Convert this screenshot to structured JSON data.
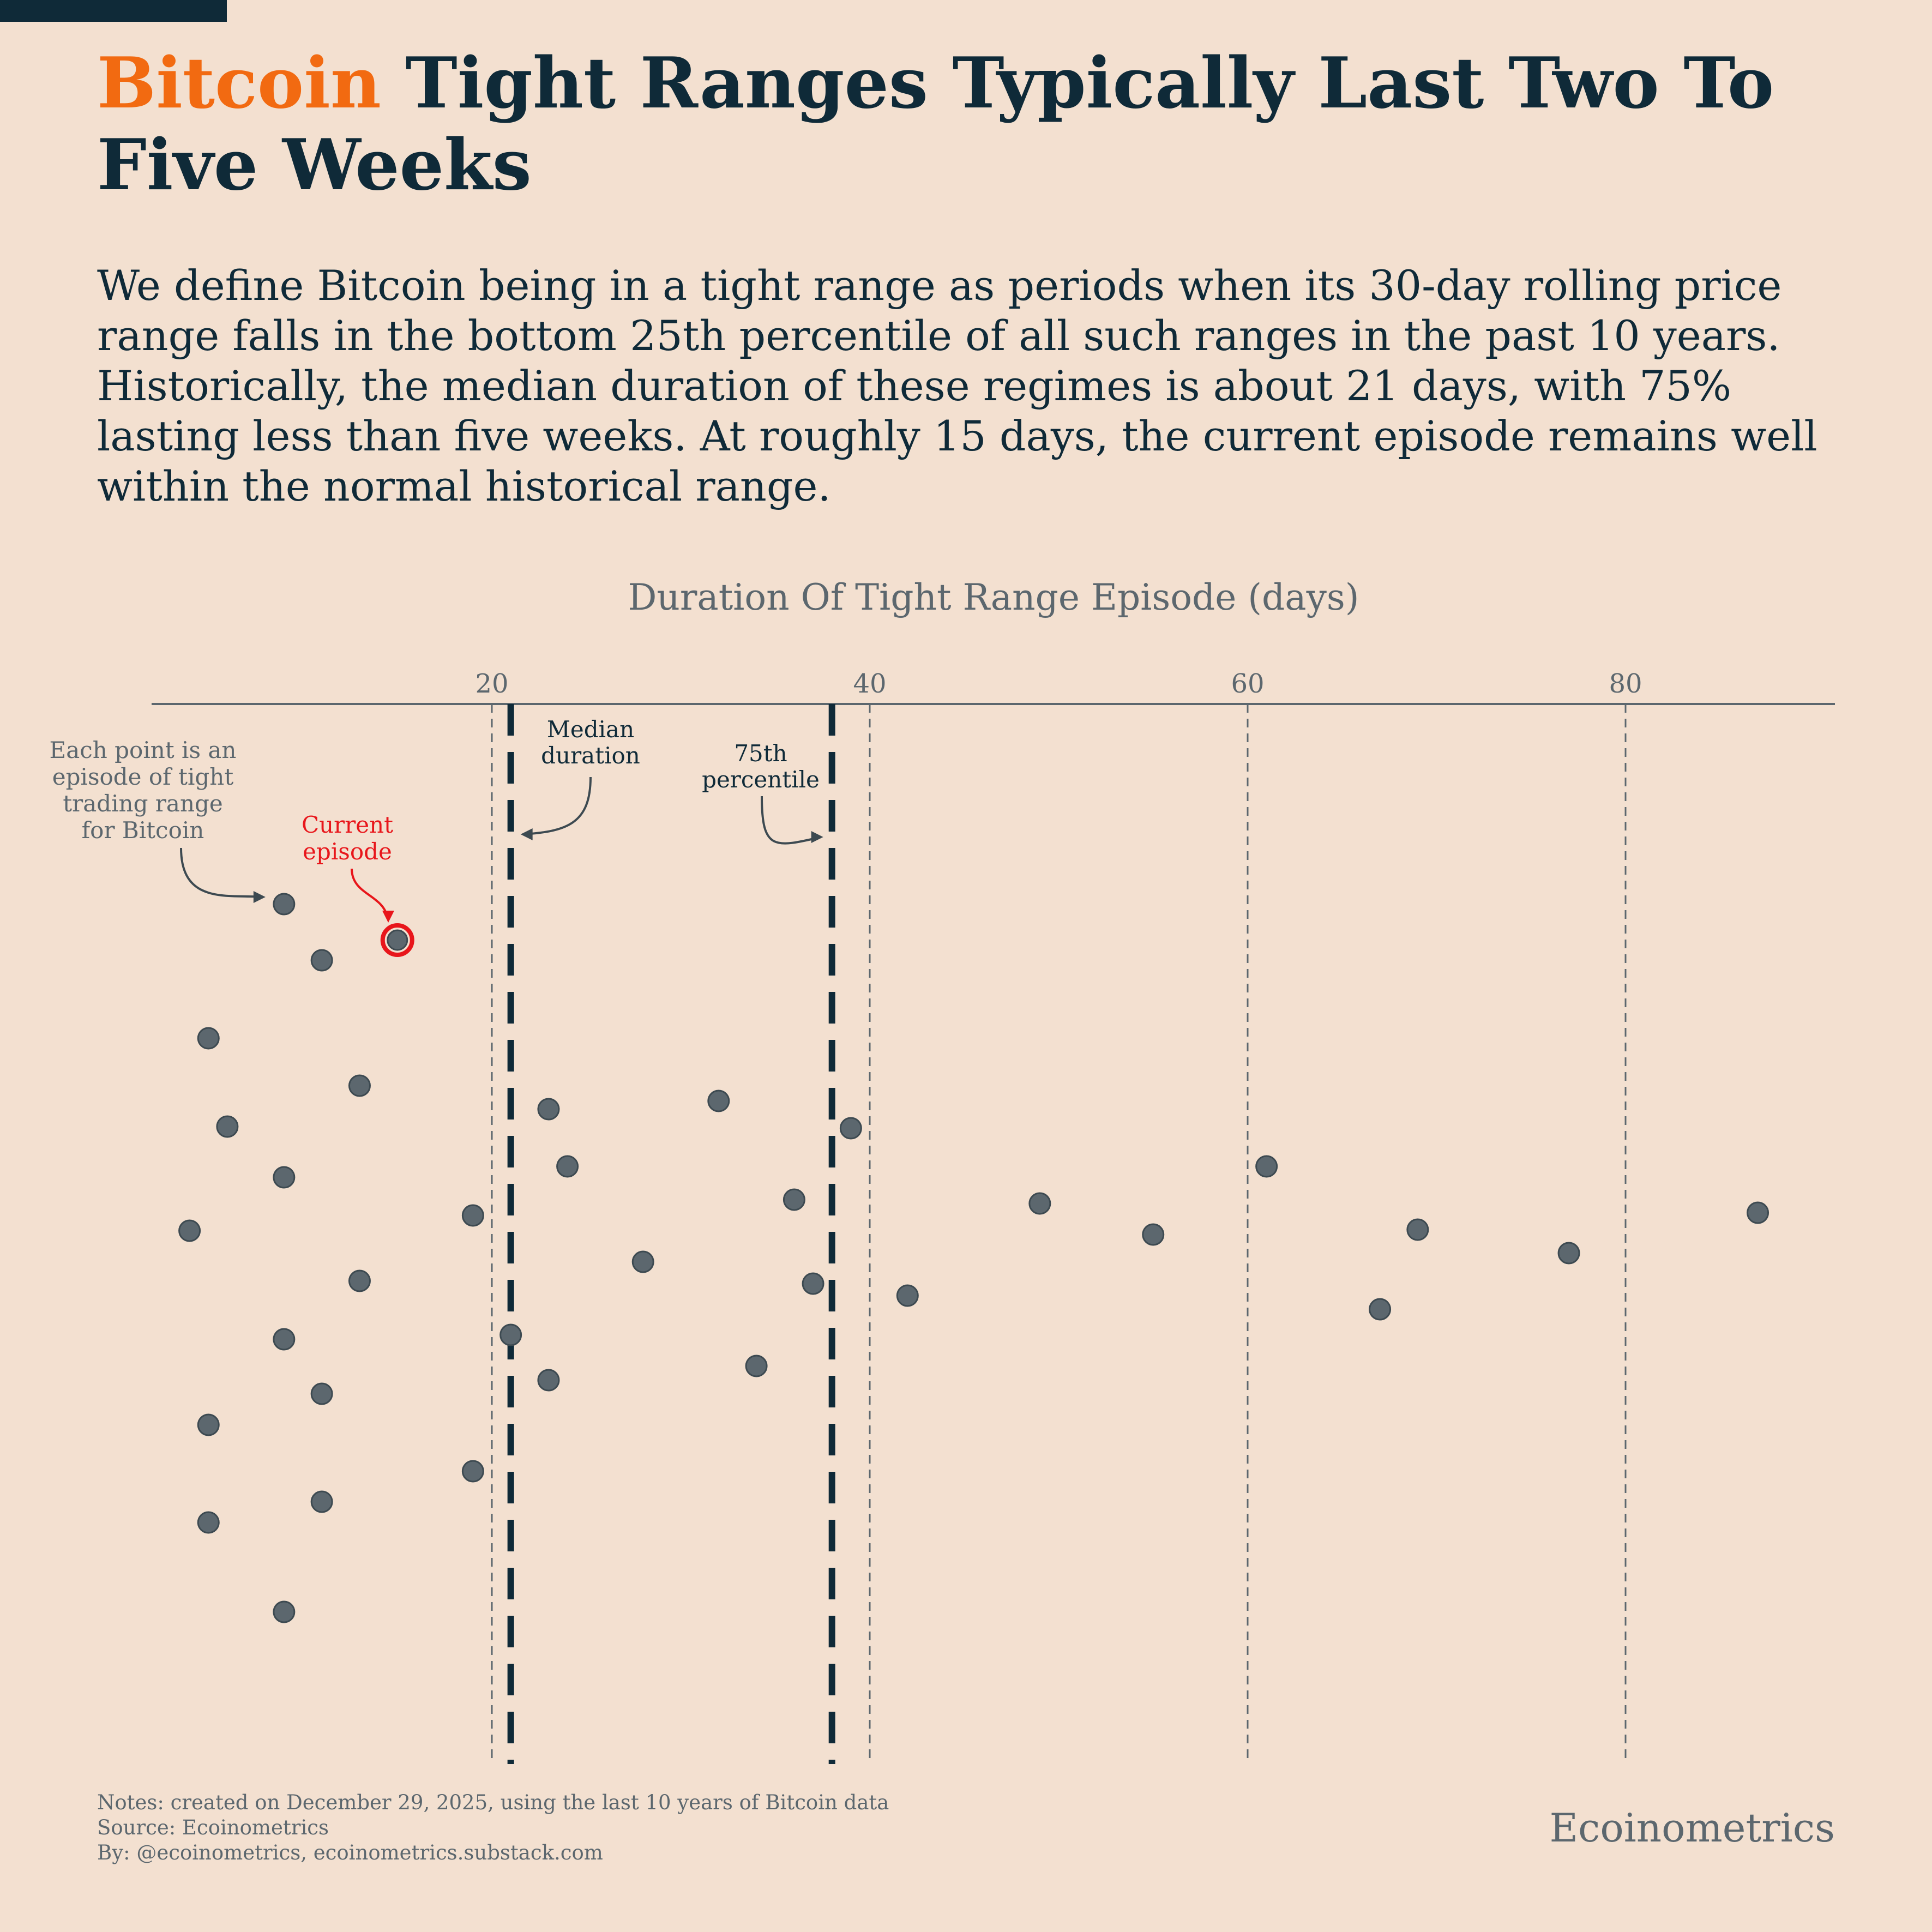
{
  "header": {
    "title_accent": "Bitcoin",
    "title_rest": " Tight Ranges Typically Last Two To Five Weeks",
    "subtitle": "We define Bitcoin being in a tight range as periods when its 30-day rolling price range falls in the bottom 25th percentile of all such ranges in the past 10 years. Historically, the median duration of these regimes is about 21 days, with 75% lasting less than five weeks. At roughly 15 days, the current episode remains well within the normal historical range."
  },
  "chart_data": {
    "type": "scatter",
    "title": "Duration Of Tight Range Episode (days)",
    "xlabel": "Duration Of Tight Range Episode (days)",
    "x_ticks": [
      20,
      40,
      60,
      80
    ],
    "x_tick_labels": [
      "20",
      "40",
      "60",
      "80"
    ],
    "xlim": [
      2,
      91
    ],
    "grid": true,
    "x": [
      9,
      11,
      5,
      13,
      6,
      9,
      4,
      13,
      9,
      11,
      5,
      11,
      5,
      9,
      19,
      19,
      23,
      24,
      21,
      23,
      28,
      32,
      34,
      36,
      37,
      39,
      42,
      49,
      55,
      61,
      67,
      69,
      77,
      87
    ],
    "current_episode": 15,
    "median": 21,
    "p75": 38,
    "colors": {
      "point": "#5c676e",
      "current": "#e8161b",
      "reference": "#0f2a38",
      "accent": "#f26a11"
    },
    "annotations": {
      "median": "Median\nduration",
      "p75": "75th\npercentile",
      "points": "Each point is an\nepisode of tight\ntrading range\nfor Bitcoin",
      "current": "Current\nepisode"
    }
  },
  "footer": {
    "notes": "Notes: created on December 29, 2025, using the last 10 years of Bitcoin data",
    "source": "Source: Ecoinometrics",
    "by": "By: @ecoinometrics, ecoinometrics.substack.com",
    "brand": "Ecoinometrics"
  }
}
